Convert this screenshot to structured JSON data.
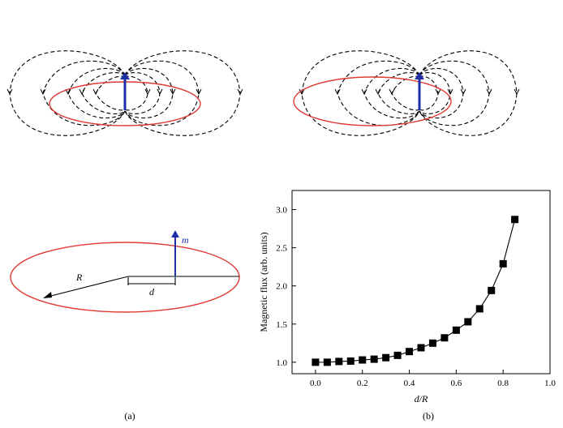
{
  "panel_a": {
    "caption": "(a)",
    "radius_label": "R",
    "distance_label": "d",
    "moment_label": "m"
  },
  "panel_b": {
    "caption": "(b)"
  },
  "colors": {
    "loop": "#e03a32",
    "dipole": "#1f2fa8",
    "field_lines": "#000000"
  },
  "chart_data": {
    "type": "line",
    "xlabel": "d/R",
    "ylabel": "Magnetic flux (arb. units)",
    "xlim": [
      -0.1,
      1.0
    ],
    "ylim": [
      0.85,
      3.25
    ],
    "xticks": [
      "0.0",
      "0.2",
      "0.4",
      "0.6",
      "0.8",
      "1.0"
    ],
    "yticks": [
      "1.0",
      "1.5",
      "2.0",
      "2.5",
      "3.0"
    ],
    "x": [
      0.0,
      0.05,
      0.1,
      0.15,
      0.2,
      0.25,
      0.3,
      0.35,
      0.4,
      0.45,
      0.5,
      0.55,
      0.6,
      0.65,
      0.7,
      0.75,
      0.8,
      0.85
    ],
    "y": [
      1.0,
      1.0,
      1.01,
      1.015,
      1.03,
      1.04,
      1.06,
      1.09,
      1.14,
      1.19,
      1.25,
      1.32,
      1.42,
      1.53,
      1.7,
      1.94,
      2.29,
      2.87
    ],
    "marker": "square",
    "grid": false
  }
}
